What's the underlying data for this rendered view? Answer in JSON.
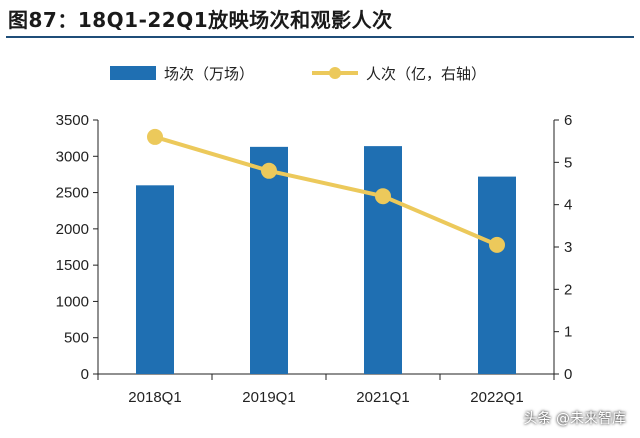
{
  "title": "图87：18Q1-22Q1放映场次和观影人次",
  "watermark": "头条 @未来智库",
  "colors": {
    "bar": "#1f6fb2",
    "line": "#ecc95b",
    "axis": "#222222"
  },
  "chart_data": {
    "type": "bar+line",
    "categories": [
      "2018Q1",
      "2019Q1",
      "2021Q1",
      "2022Q1"
    ],
    "series": [
      {
        "name": "场次（万场）",
        "kind": "bar",
        "axis": "left",
        "values": [
          2600,
          3130,
          3140,
          2720
        ]
      },
      {
        "name": "人次（亿，右轴）",
        "kind": "line",
        "axis": "right",
        "values": [
          5.6,
          4.8,
          4.2,
          3.05
        ]
      }
    ],
    "left_axis": {
      "min": 0,
      "max": 3500,
      "step": 500,
      "ticks": [
        "0",
        "500",
        "1000",
        "1500",
        "2000",
        "2500",
        "3000",
        "3500"
      ]
    },
    "right_axis": {
      "min": 0,
      "max": 6,
      "step": 1,
      "ticks": [
        "0",
        "1",
        "2",
        "3",
        "4",
        "5",
        "6"
      ]
    },
    "legend_position": "top",
    "grid": false
  }
}
